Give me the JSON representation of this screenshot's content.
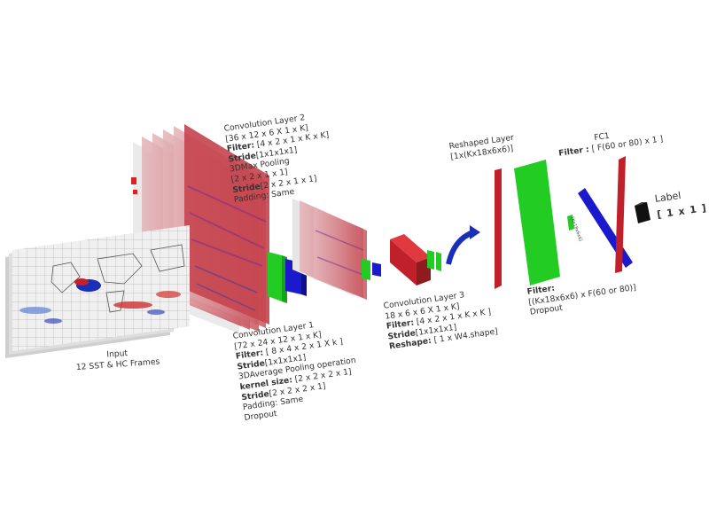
{
  "labels": {
    "input": {
      "title": "Input",
      "subtitle": "12 SST & HC Frames"
    },
    "conv1": {
      "title": "Convolution Layer 1",
      "shape": "[72 x 24 x 12 x 1 x K]",
      "filter_key": "Filter:",
      "filter_val": "[ 8 x 4 x 2 x 1 X k ]",
      "stride_key": "Stride",
      "stride_val": "[1x1x1x1]",
      "pool_op": "3DAverage Pooling operation",
      "kernel_key": "kernel size:",
      "kernel_val": "[2 x 2 x 2 x 1]",
      "stride2_key": "Stride",
      "stride2_val": "[2 x  2 x 2 x 1]",
      "padding": "Padding: Same",
      "dropout": "Dropout"
    },
    "conv2": {
      "title": "Convolution Layer 2",
      "shape": "[36 x 12 x 6 X 1 x K]",
      "filter_key": "Filter:",
      "filter_val": "[4 x 2 x 1 x K x K]",
      "stride_key": "Stride",
      "stride_val": "[1x1x1x1]",
      "pool_op": "3DMax Pooling",
      "pool_val": "[2 x 2 x 1 x 1]",
      "stride2_key": "Stride",
      "stride2_val": "[2 x 2 x 1 x 1]",
      "padding": "Padding: Same"
    },
    "conv3": {
      "title": "Convolution Layer 3",
      "shape": "18 x 6 x 6 X 1 x K]",
      "filter_key": "Filter:",
      "filter_val": "[4 x 2 x 1 x K x K ]",
      "stride_key": "Stride",
      "stride_val": "[1x1x1x1]",
      "reshape_key": "Reshape:",
      "reshape_val": "[ 1 x W4.shape]"
    },
    "reshaped": {
      "title": "Reshaped Layer",
      "shape": "[1x(Kx18x6x6)]"
    },
    "fc": {
      "title": "FC1",
      "filter_key": "Filter :",
      "filter_val": "[ F(60 or 80) x 1 ]"
    },
    "fc_filter": {
      "key": "Filter:",
      "value": "[(Kx18x6x6) x F(60 or 80)]",
      "dropout": "Dropout"
    },
    "label": {
      "title": "Label",
      "shape": "[ 1 x 1 ]"
    },
    "mini": "[Kx18x6x6]"
  },
  "colors": {
    "heatmap_red": "#c8202a",
    "heatmap_blue": "#1a2fb8",
    "layer_red": "#c0202a",
    "layer_green": "#22cc22",
    "layer_blue": "#1a1acc",
    "label_black": "#111111",
    "frame_gray": "#d8d8d8"
  }
}
